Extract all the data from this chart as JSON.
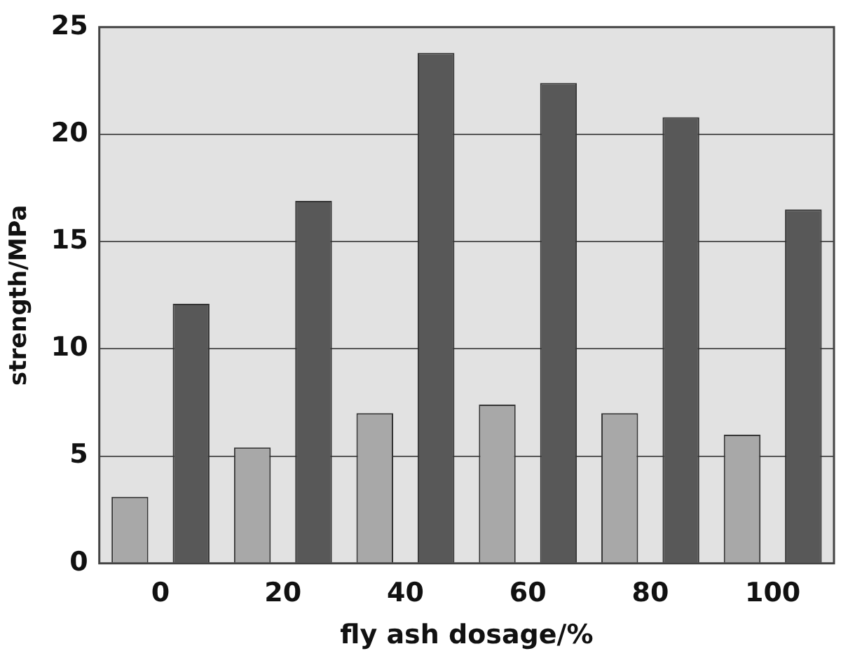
{
  "chart_data": {
    "type": "bar",
    "xlabel": "fly ash dosage/%",
    "ylabel": "strength/MPa",
    "categories": [
      "0",
      "20",
      "40",
      "60",
      "80",
      "100"
    ],
    "series": [
      {
        "color": "#a8a8a8",
        "values": [
          3.1,
          5.4,
          7.0,
          7.4,
          7.0,
          6.0
        ]
      },
      {
        "color": "#585858",
        "values": [
          12.1,
          16.9,
          23.8,
          22.4,
          20.8,
          16.5
        ]
      }
    ],
    "ylim": [
      0,
      25
    ],
    "yticks": [
      0,
      5,
      10,
      15,
      20,
      25
    ],
    "grid": "y",
    "legend": false
  }
}
